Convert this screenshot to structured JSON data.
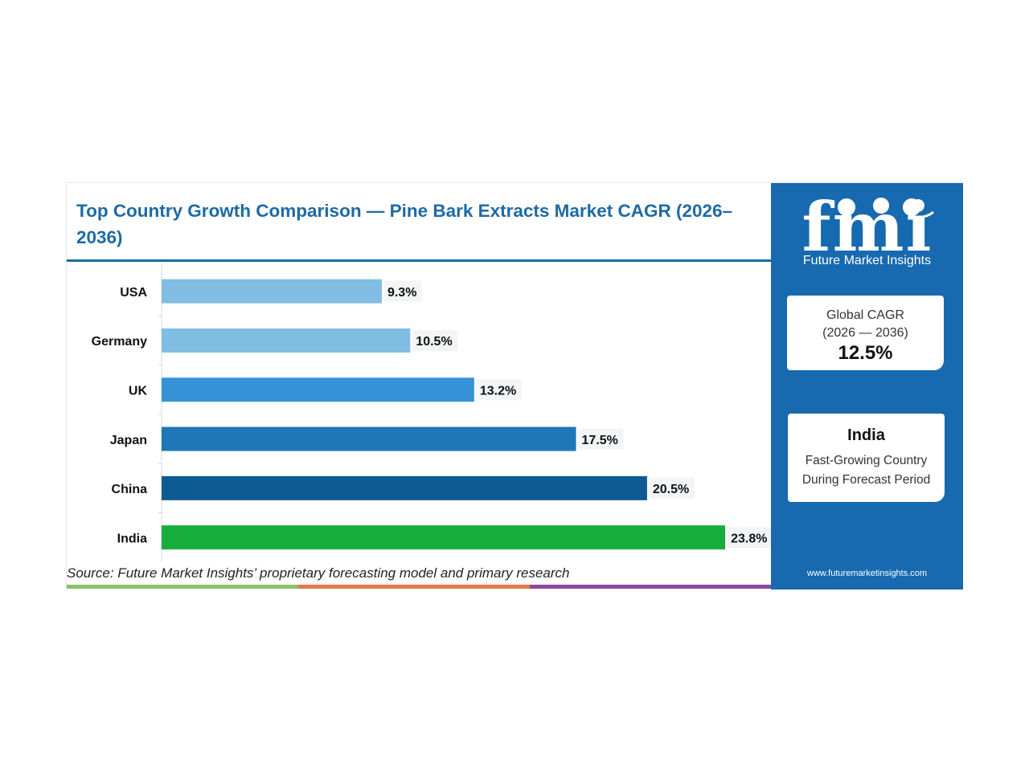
{
  "title": "Top Country Growth Comparison — Pine Bark Extracts Market CAGR (2026–2036)",
  "source": "Source: Future Market Insights’ proprietary forecasting model and primary research",
  "logo": {
    "mark": "fmi",
    "name": "Future Market Insights",
    "url": "www.futuremarketinsights.com"
  },
  "global_cagr": {
    "label": "Global CAGR",
    "period": "(2026 — 2036)",
    "value": "12.5%"
  },
  "highlight": {
    "country": "India",
    "line1": "Fast-Growing Country",
    "line2": "During Forecast Period"
  },
  "colors": {
    "panel": "#1769b0",
    "title": "#1d6aa5",
    "strip": [
      "#8bc06a",
      "#e4794a",
      "#8b4aa0"
    ]
  },
  "chart_data": {
    "type": "bar",
    "orientation": "horizontal",
    "categories": [
      "USA",
      "Germany",
      "UK",
      "Japan",
      "China",
      "India"
    ],
    "values": [
      9.3,
      10.5,
      13.2,
      17.5,
      20.5,
      23.8
    ],
    "value_labels": [
      "9.3%",
      "10.5%",
      "13.2%",
      "17.5%",
      "20.5%",
      "23.8%"
    ],
    "bar_colors": [
      "#82bde3",
      "#82bde3",
      "#3592d6",
      "#2077b7",
      "#0d5a94",
      "#16ad3a"
    ],
    "xlim": [
      0,
      24
    ],
    "grid": false
  }
}
